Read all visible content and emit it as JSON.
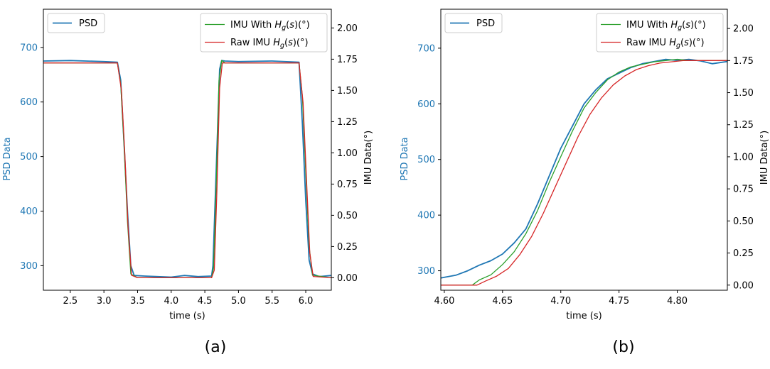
{
  "chart_data": [
    {
      "type": "line",
      "panel_label": "(a)",
      "xlabel": "time (s)",
      "ylabel_left": "PSD Data",
      "ylabel_right": "IMU Data(°)",
      "xlim": [
        2.1,
        6.38
      ],
      "ylim_left": [
        255,
        770
      ],
      "ylim_right": [
        -0.1,
        2.15
      ],
      "x_ticks": [
        2.5,
        3.0,
        3.5,
        4.0,
        4.5,
        5.0,
        5.5,
        6.0
      ],
      "x_tick_labels": [
        "2.5",
        "3.0",
        "3.5",
        "4.0",
        "4.5",
        "5.0",
        "5.5",
        "6.0"
      ],
      "y_left_ticks": [
        300,
        400,
        500,
        600,
        700
      ],
      "y_left_tick_labels": [
        "300",
        "400",
        "500",
        "600",
        "700"
      ],
      "y_right_ticks": [
        0.0,
        0.25,
        0.5,
        0.75,
        1.0,
        1.25,
        1.5,
        1.75,
        2.0
      ],
      "y_right_tick_labels": [
        "0.00",
        "0.25",
        "0.50",
        "0.75",
        "1.00",
        "1.25",
        "1.50",
        "1.75",
        "2.00"
      ],
      "legend_left": {
        "placement": "upper-left",
        "entries": [
          "PSD"
        ]
      },
      "legend_right": {
        "placement": "upper-right",
        "entries": [
          "IMU With Hg(s)(°)",
          "Raw IMU Hg(s)(°)"
        ]
      },
      "series": [
        {
          "name": "PSD",
          "axis": "left",
          "color": "#1f77b4",
          "x": [
            2.1,
            2.5,
            3.0,
            3.2,
            3.25,
            3.3,
            3.35,
            3.4,
            3.45,
            3.6,
            3.8,
            4.0,
            4.2,
            4.4,
            4.6,
            4.62,
            4.67,
            4.72,
            4.75,
            4.8,
            5.0,
            5.5,
            5.9,
            5.95,
            6.0,
            6.05,
            6.1,
            6.2,
            6.38
          ],
          "y": [
            675,
            676,
            674,
            673,
            640,
            520,
            400,
            300,
            282,
            281,
            280,
            279,
            282,
            280,
            281,
            300,
            480,
            660,
            676,
            675,
            674,
            675,
            673,
            560,
            420,
            310,
            285,
            280,
            282
          ]
        },
        {
          "name": "IMU With Hg(s)(°)",
          "axis": "right",
          "color": "#2ca02c",
          "x": [
            2.1,
            3.2,
            3.25,
            3.3,
            3.35,
            3.4,
            3.5,
            4.6,
            4.63,
            4.67,
            4.71,
            4.75,
            4.8,
            5.9,
            5.95,
            6.0,
            6.05,
            6.1,
            6.38
          ],
          "y": [
            1.72,
            1.72,
            1.55,
            1.05,
            0.45,
            0.03,
            0.0,
            0.0,
            0.08,
            0.75,
            1.58,
            1.74,
            1.72,
            1.72,
            1.45,
            0.85,
            0.25,
            0.02,
            0.0
          ]
        },
        {
          "name": "Raw IMU Hg(s)(°)",
          "axis": "right",
          "color": "#d62728",
          "x": [
            2.1,
            3.2,
            3.26,
            3.31,
            3.36,
            3.41,
            3.5,
            4.6,
            4.64,
            4.68,
            4.72,
            4.76,
            4.8,
            5.9,
            5.96,
            6.01,
            6.06,
            6.11,
            6.38
          ],
          "y": [
            1.72,
            1.72,
            1.5,
            1.0,
            0.4,
            0.02,
            0.0,
            0.0,
            0.06,
            0.7,
            1.52,
            1.72,
            1.72,
            1.72,
            1.4,
            0.8,
            0.2,
            0.01,
            0.0
          ]
        }
      ]
    },
    {
      "type": "line",
      "panel_label": "(b)",
      "xlabel": "time (s)",
      "ylabel_left": "PSD Data",
      "ylabel_right": "IMU Data(°)",
      "xlim": [
        4.597,
        4.843
      ],
      "ylim_left": [
        265,
        770
      ],
      "ylim_right": [
        -0.04,
        2.15
      ],
      "x_ticks": [
        4.6,
        4.65,
        4.7,
        4.75,
        4.8
      ],
      "x_tick_labels": [
        "4.60",
        "4.65",
        "4.70",
        "4.75",
        "4.80"
      ],
      "y_left_ticks": [
        300,
        400,
        500,
        600,
        700
      ],
      "y_left_tick_labels": [
        "300",
        "400",
        "500",
        "600",
        "700"
      ],
      "y_right_ticks": [
        0.0,
        0.25,
        0.5,
        0.75,
        1.0,
        1.25,
        1.5,
        1.75,
        2.0
      ],
      "y_right_tick_labels": [
        "0.00",
        "0.25",
        "0.50",
        "0.75",
        "1.00",
        "1.25",
        "1.50",
        "1.75",
        "2.00"
      ],
      "legend_left": {
        "placement": "upper-left",
        "entries": [
          "PSD"
        ]
      },
      "legend_right": {
        "placement": "upper-right",
        "entries": [
          "IMU With Hg(s)(°)",
          "Raw IMU Hg(s)(°)"
        ]
      },
      "series": [
        {
          "name": "PSD",
          "axis": "left",
          "color": "#1f77b4",
          "x": [
            4.597,
            4.61,
            4.62,
            4.63,
            4.64,
            4.65,
            4.66,
            4.67,
            4.68,
            4.69,
            4.7,
            4.71,
            4.72,
            4.73,
            4.74,
            4.75,
            4.76,
            4.77,
            4.78,
            4.79,
            4.8,
            4.81,
            4.82,
            4.83,
            4.843
          ],
          "y": [
            287,
            292,
            300,
            310,
            318,
            330,
            350,
            375,
            420,
            470,
            520,
            560,
            600,
            625,
            645,
            655,
            665,
            672,
            676,
            680,
            678,
            680,
            677,
            672,
            676
          ]
        },
        {
          "name": "IMU With Hg(s)(°)",
          "axis": "right",
          "color": "#2ca02c",
          "x": [
            4.597,
            4.624,
            4.63,
            4.64,
            4.65,
            4.66,
            4.67,
            4.68,
            4.69,
            4.7,
            4.71,
            4.72,
            4.73,
            4.74,
            4.75,
            4.76,
            4.77,
            4.78,
            4.79,
            4.8,
            4.81,
            4.82,
            4.843
          ],
          "y": [
            0.0,
            0.0,
            0.04,
            0.08,
            0.16,
            0.26,
            0.4,
            0.58,
            0.8,
            1.0,
            1.2,
            1.38,
            1.5,
            1.6,
            1.66,
            1.7,
            1.72,
            1.74,
            1.75,
            1.76,
            1.75,
            1.75,
            1.75
          ]
        },
        {
          "name": "Raw IMU Hg(s)(°)",
          "axis": "right",
          "color": "#d62728",
          "x": [
            4.597,
            4.628,
            4.635,
            4.645,
            4.655,
            4.665,
            4.675,
            4.685,
            4.695,
            4.705,
            4.715,
            4.725,
            4.735,
            4.745,
            4.755,
            4.765,
            4.775,
            4.785,
            4.795,
            4.805,
            4.82,
            4.843
          ],
          "y": [
            0.0,
            0.0,
            0.03,
            0.07,
            0.13,
            0.24,
            0.38,
            0.56,
            0.76,
            0.96,
            1.16,
            1.33,
            1.46,
            1.56,
            1.63,
            1.68,
            1.71,
            1.73,
            1.74,
            1.75,
            1.75,
            1.75
          ]
        }
      ]
    }
  ]
}
